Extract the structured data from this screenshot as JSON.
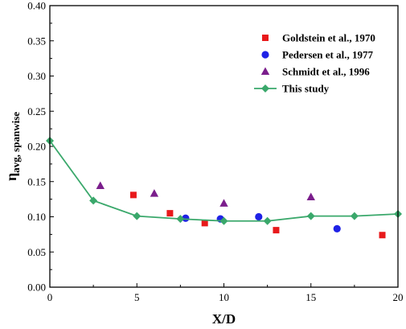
{
  "chart_data": {
    "type": "scatter",
    "xlabel": "X/D",
    "ylabel": {
      "main": "η",
      "sub": "avg, spanwise"
    },
    "xlim": [
      0,
      20
    ],
    "ylim": [
      0,
      0.4
    ],
    "xticks": [
      "0",
      "5",
      "10",
      "15",
      "20"
    ],
    "yticks": [
      "0.00",
      "0.05",
      "0.10",
      "0.15",
      "0.20",
      "0.25",
      "0.30",
      "0.35",
      "0.40"
    ],
    "series": [
      {
        "name": "Goldstein et al., 1970",
        "marker": "square",
        "color": "#e8191b",
        "x": [
          4.8,
          6.9,
          8.9,
          13.0,
          19.1
        ],
        "y": [
          0.131,
          0.105,
          0.091,
          0.081,
          0.074
        ]
      },
      {
        "name": "Pedersen et al., 1977",
        "marker": "circle",
        "color": "#1f22e6",
        "x": [
          7.8,
          9.8,
          12.0,
          16.5
        ],
        "y": [
          0.098,
          0.097,
          0.1,
          0.083
        ]
      },
      {
        "name": "Schmidt et al., 1996",
        "marker": "triangle",
        "color": "#7b1e8c",
        "x": [
          2.9,
          6.0,
          10.0,
          15.0
        ],
        "y": [
          0.144,
          0.133,
          0.119,
          0.128
        ]
      },
      {
        "name": "This study",
        "marker": "diamond-line",
        "color": "#3aa86b",
        "x": [
          0,
          2.5,
          5,
          7.5,
          10,
          12.5,
          15,
          17.5,
          20
        ],
        "y": [
          0.208,
          0.123,
          0.101,
          0.097,
          0.094,
          0.094,
          0.101,
          0.101,
          0.104
        ]
      }
    ]
  }
}
